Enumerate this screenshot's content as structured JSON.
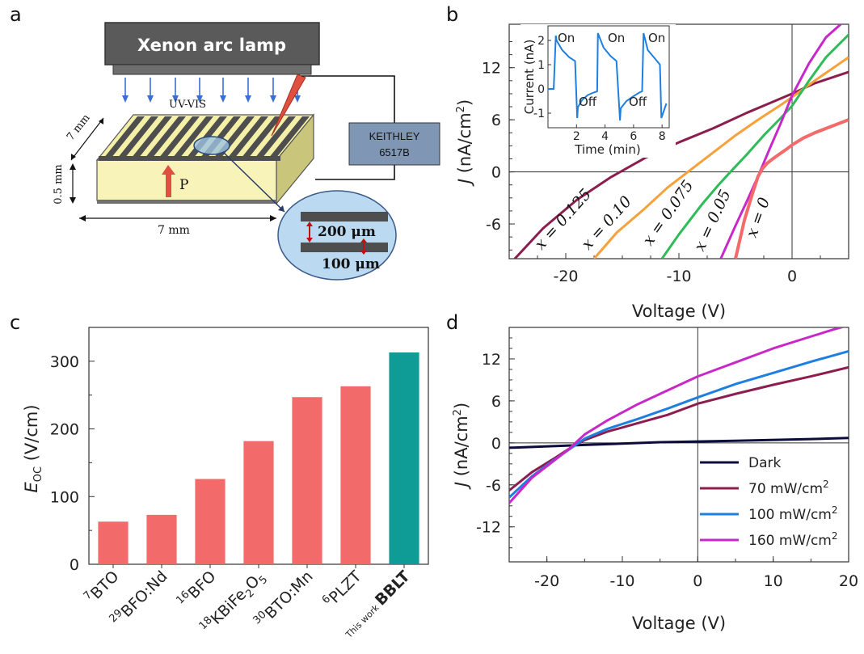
{
  "panel_labels": {
    "a": "a",
    "b": "b",
    "c": "c",
    "d": "d"
  },
  "panel_a": {
    "lamp_label": "Xenon arc lamp",
    "light_label": "UV-VIS",
    "meter_line1": "KEITHLEY",
    "meter_line2": "6517B",
    "dim_depth": "7 mm",
    "dim_thickness": "0.5 mm",
    "dim_width": "7 mm",
    "polarization_label": "P",
    "zoom_top_label": "200 μm",
    "zoom_bottom_label": "100 μm",
    "colors": {
      "lamp": "#5a5a5a",
      "sample": "#f5f0a8",
      "electrode": "#555555",
      "zoom": "#bcd9f2",
      "meter": "#7f97b5",
      "arrow": "#e05040"
    }
  },
  "chart_data": [
    {
      "id": "b",
      "type": "line",
      "xlabel": "Voltage (V)",
      "ylabel": "J (nA/cm2)",
      "ylabel_parts": {
        "j": "J",
        "unit": " (nA/cm",
        "sup": "2",
        "close": ")"
      },
      "xlim": [
        -25,
        5
      ],
      "ylim": [
        -10,
        17
      ],
      "xticks": [
        -20,
        -10,
        0
      ],
      "xtick_labels": [
        "-20",
        "-10",
        "0"
      ],
      "yticks": [
        -6,
        0,
        6,
        12
      ],
      "ytick_labels": [
        "-6",
        "0",
        "6",
        "12"
      ],
      "series": [
        {
          "name": "x = 0.125",
          "color": "#8b1e4e",
          "x": [
            -24.5,
            -22,
            -19,
            -16,
            -13,
            -10,
            -7,
            -4,
            -2,
            0,
            2,
            5
          ],
          "y": [
            -10,
            -6.5,
            -3.2,
            -0.6,
            1.6,
            3.4,
            5.0,
            6.8,
            7.9,
            9.0,
            10.2,
            11.5
          ]
        },
        {
          "name": "x = 0.10",
          "color": "#f7a13b",
          "x": [
            -17.5,
            -15.5,
            -13,
            -11,
            -9,
            -7,
            -5,
            -3,
            -1,
            0,
            2,
            5
          ],
          "y": [
            -10,
            -7,
            -4.2,
            -1.8,
            0.2,
            2.2,
            4.2,
            6.0,
            7.7,
            8.6,
            10.5,
            13.2
          ]
        },
        {
          "name": "x = 0.075",
          "color": "#2fbb58",
          "x": [
            -11.5,
            -10,
            -8,
            -6.5,
            -5.3,
            -4,
            -2.5,
            -1,
            0,
            1.5,
            3,
            5
          ],
          "y": [
            -10,
            -7.2,
            -3.8,
            -1.5,
            0.2,
            2.0,
            4.2,
            6.2,
            7.6,
            10.5,
            13.2,
            15.8
          ]
        },
        {
          "name": "x = 0.05",
          "color": "#c828c8",
          "x": [
            -6.3,
            -5,
            -4,
            -3,
            -2,
            -1,
            0,
            1.5,
            3,
            4.3
          ],
          "y": [
            -10,
            -6.2,
            -3.4,
            -0.5,
            2.6,
            5.6,
            8.8,
            12.5,
            15.5,
            17
          ]
        },
        {
          "name": "x = 0",
          "color": "#f26a6a",
          "x": [
            -5,
            -4.2,
            -3.5,
            -3.0,
            -2.6,
            -2.2,
            -1.5,
            -0.5,
            0,
            1,
            2,
            3,
            4,
            5
          ],
          "y": [
            -10,
            -5.5,
            -2.5,
            -0.5,
            0.4,
            1.0,
            1.7,
            2.6,
            3.1,
            3.9,
            4.5,
            5.0,
            5.5,
            6.0
          ]
        }
      ],
      "curve_labels": [
        "x = 0.125",
        "x = 0.10",
        "x = 0.075",
        "x = 0.05",
        "x = 0"
      ],
      "inset": {
        "type": "line",
        "xlabel": "Time (min)",
        "ylabel": "Current (nA)",
        "xlim": [
          0,
          8.5
        ],
        "ylim": [
          -1.6,
          2.6
        ],
        "xticks": [
          2,
          4,
          6,
          8
        ],
        "xtick_labels": [
          "2",
          "4",
          "6",
          "8"
        ],
        "yticks": [
          -1,
          0,
          1,
          2
        ],
        "ytick_labels": [
          "-1",
          "0",
          "1",
          "2"
        ],
        "color": "#1f7fe0",
        "on_label": "On",
        "off_label": "Off",
        "x": [
          0,
          0.4,
          0.55,
          0.6,
          1.0,
          1.5,
          1.9,
          2.05,
          2.1,
          2.4,
          2.8,
          3.2,
          3.45,
          3.5,
          3.9,
          4.4,
          4.8,
          5.05,
          5.1,
          5.5,
          6.0,
          6.4,
          6.6,
          6.7,
          7.0,
          7.5,
          7.85,
          7.95,
          8.3
        ],
        "y": [
          0.0,
          0.0,
          2.2,
          2.0,
          1.6,
          1.3,
          1.15,
          -1.2,
          -0.75,
          -0.45,
          -0.25,
          -0.15,
          -0.1,
          2.3,
          1.7,
          1.35,
          1.15,
          -1.3,
          -0.8,
          -0.5,
          -0.3,
          -0.15,
          -0.1,
          2.3,
          1.6,
          1.25,
          1.0,
          -1.2,
          -0.6
        ]
      }
    },
    {
      "id": "c",
      "type": "bar",
      "ylabel": "E_OC (V/cm)",
      "ylabel_parts": {
        "e": "E",
        "sub": "OC",
        "unit": " (V/cm)"
      },
      "ylim": [
        0,
        350
      ],
      "yticks": [
        0,
        100,
        200,
        300
      ],
      "ytick_labels": [
        "0",
        "100",
        "200",
        "300"
      ],
      "categories": [
        "7BTO",
        "29BFO:Nd",
        "16BFO",
        "18KBiFe2O5",
        "30BTO:Mn",
        "6PLZT",
        "This work BBLT"
      ],
      "category_parts": [
        {
          "sup": "7",
          "main": "BTO"
        },
        {
          "sup": "29",
          "main": "BFO:Nd"
        },
        {
          "sup": "16",
          "main": "BFO"
        },
        {
          "sup": "18",
          "main": "KBiFe",
          "sub1": "2",
          "main2": "O",
          "sub2": "5"
        },
        {
          "sup": "30",
          "main": "BTO:Mn"
        },
        {
          "sup": "6",
          "main": "PLZT"
        },
        {
          "pre": "This work",
          "main": "BBLT",
          "bold": true
        }
      ],
      "values": [
        63,
        73,
        126,
        182,
        247,
        263,
        313
      ],
      "colors": [
        "#f26a6a",
        "#f26a6a",
        "#f26a6a",
        "#f26a6a",
        "#f26a6a",
        "#f26a6a",
        "#0f9b96"
      ]
    },
    {
      "id": "d",
      "type": "line",
      "xlabel": "Voltage (V)",
      "ylabel": "J (nA/cm2)",
      "ylabel_parts": {
        "j": "J",
        "unit": " (nA/cm",
        "sup": "2",
        "close": ")"
      },
      "xlim": [
        -25,
        20
      ],
      "ylim": [
        -17,
        16.5
      ],
      "xticks": [
        -20,
        -10,
        0,
        10,
        20
      ],
      "xtick_labels": [
        "-20",
        "-10",
        "0",
        "10",
        "20"
      ],
      "yticks": [
        -12,
        -6,
        0,
        6,
        12
      ],
      "ytick_labels": [
        "-12",
        "-6",
        "0",
        "6",
        "12"
      ],
      "series": [
        {
          "name": "Dark",
          "legend": "Dark",
          "color": "#0c0c3c",
          "x": [
            -25,
            -15,
            -5,
            0,
            5,
            15,
            20
          ],
          "y": [
            -0.7,
            -0.3,
            0.1,
            0.2,
            0.3,
            0.55,
            0.7
          ]
        },
        {
          "name": "70 mW/cm2",
          "legend_main": "70 mW/cm",
          "legend_sup": "2",
          "color": "#8b1e4e",
          "x": [
            -25,
            -22,
            -19,
            -17,
            -15,
            -12,
            -8,
            -4,
            0,
            5,
            10,
            15,
            20
          ],
          "y": [
            -6.8,
            -4.2,
            -2.2,
            -0.8,
            0.4,
            1.6,
            2.8,
            4.0,
            5.6,
            7.0,
            8.3,
            9.5,
            10.8
          ]
        },
        {
          "name": "100 mW/cm2",
          "legend_main": "100 mW/cm",
          "legend_sup": "2",
          "color": "#1f7fe0",
          "x": [
            -25,
            -22,
            -19,
            -17,
            -15,
            -12,
            -8,
            -4,
            0,
            5,
            10,
            15,
            20
          ],
          "y": [
            -7.8,
            -4.8,
            -2.4,
            -0.9,
            0.6,
            2.0,
            3.4,
            4.9,
            6.5,
            8.4,
            10.0,
            11.6,
            13.1
          ]
        },
        {
          "name": "160 mW/cm2",
          "legend_main": "160 mW/cm",
          "legend_sup": "2",
          "color": "#c828c8",
          "x": [
            -25,
            -22,
            -19,
            -17,
            -15,
            -12,
            -8,
            -4,
            0,
            5,
            10,
            15,
            18,
            20
          ],
          "y": [
            -8.6,
            -5.0,
            -2.5,
            -0.8,
            1.2,
            3.2,
            5.5,
            7.5,
            9.5,
            11.5,
            13.5,
            15.2,
            16.2,
            16.8
          ]
        }
      ],
      "legend_position": "bottom-right"
    }
  ]
}
